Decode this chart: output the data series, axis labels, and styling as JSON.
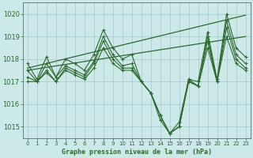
{
  "title": "Graphe pression niveau de la mer (hPa)",
  "bg_color": "#cce8e8",
  "grid_color": "#aad0d0",
  "line_color": "#2d6a2d",
  "xlim": [
    -0.5,
    23.5
  ],
  "ylim": [
    1014.5,
    1020.5
  ],
  "yticks": [
    1015,
    1016,
    1017,
    1018,
    1019,
    1020
  ],
  "xticks": [
    0,
    1,
    2,
    3,
    4,
    5,
    6,
    7,
    8,
    9,
    10,
    11,
    12,
    13,
    14,
    15,
    16,
    17,
    18,
    19,
    20,
    21,
    22,
    23
  ],
  "series": [
    [
      1017.8,
      1017.1,
      1018.1,
      1017.2,
      1018.0,
      1017.8,
      1017.5,
      1018.2,
      1019.3,
      1018.5,
      1018.0,
      1018.2,
      1017.0,
      1016.5,
      1015.3,
      1014.7,
      1015.2,
      1017.1,
      1017.0,
      1019.2,
      1017.1,
      1020.0,
      1018.5,
      1018.1
    ],
    [
      1017.5,
      1017.0,
      1017.8,
      1017.2,
      1017.7,
      1017.5,
      1017.3,
      1017.9,
      1019.0,
      1018.2,
      1017.7,
      1017.8,
      1017.0,
      1016.5,
      1015.5,
      1014.7,
      1015.0,
      1017.1,
      1016.8,
      1019.0,
      1017.0,
      1019.7,
      1018.2,
      1017.8
    ],
    [
      1017.2,
      1017.0,
      1017.5,
      1017.0,
      1017.6,
      1017.4,
      1017.2,
      1017.8,
      1018.8,
      1018.0,
      1017.6,
      1017.6,
      1017.0,
      1016.5,
      1015.5,
      1014.7,
      1015.0,
      1017.0,
      1016.8,
      1018.8,
      1017.0,
      1019.4,
      1018.0,
      1017.6
    ],
    [
      1017.0,
      1017.0,
      1017.4,
      1017.0,
      1017.5,
      1017.3,
      1017.1,
      1017.6,
      1018.5,
      1017.8,
      1017.5,
      1017.5,
      1017.0,
      1016.5,
      1015.5,
      1014.7,
      1015.0,
      1017.0,
      1016.8,
      1018.5,
      1017.0,
      1019.0,
      1017.8,
      1017.5
    ]
  ],
  "trend_lines": [
    [
      [
        0,
        1017.6
      ],
      [
        23,
        1019.95
      ]
    ],
    [
      [
        0,
        1017.5
      ],
      [
        23,
        1019.0
      ]
    ]
  ],
  "ylabel_fontsize": 6,
  "xlabel_fontsize": 6,
  "tick_fontsize": 5,
  "linewidth": 0.8,
  "markersize": 2.5
}
